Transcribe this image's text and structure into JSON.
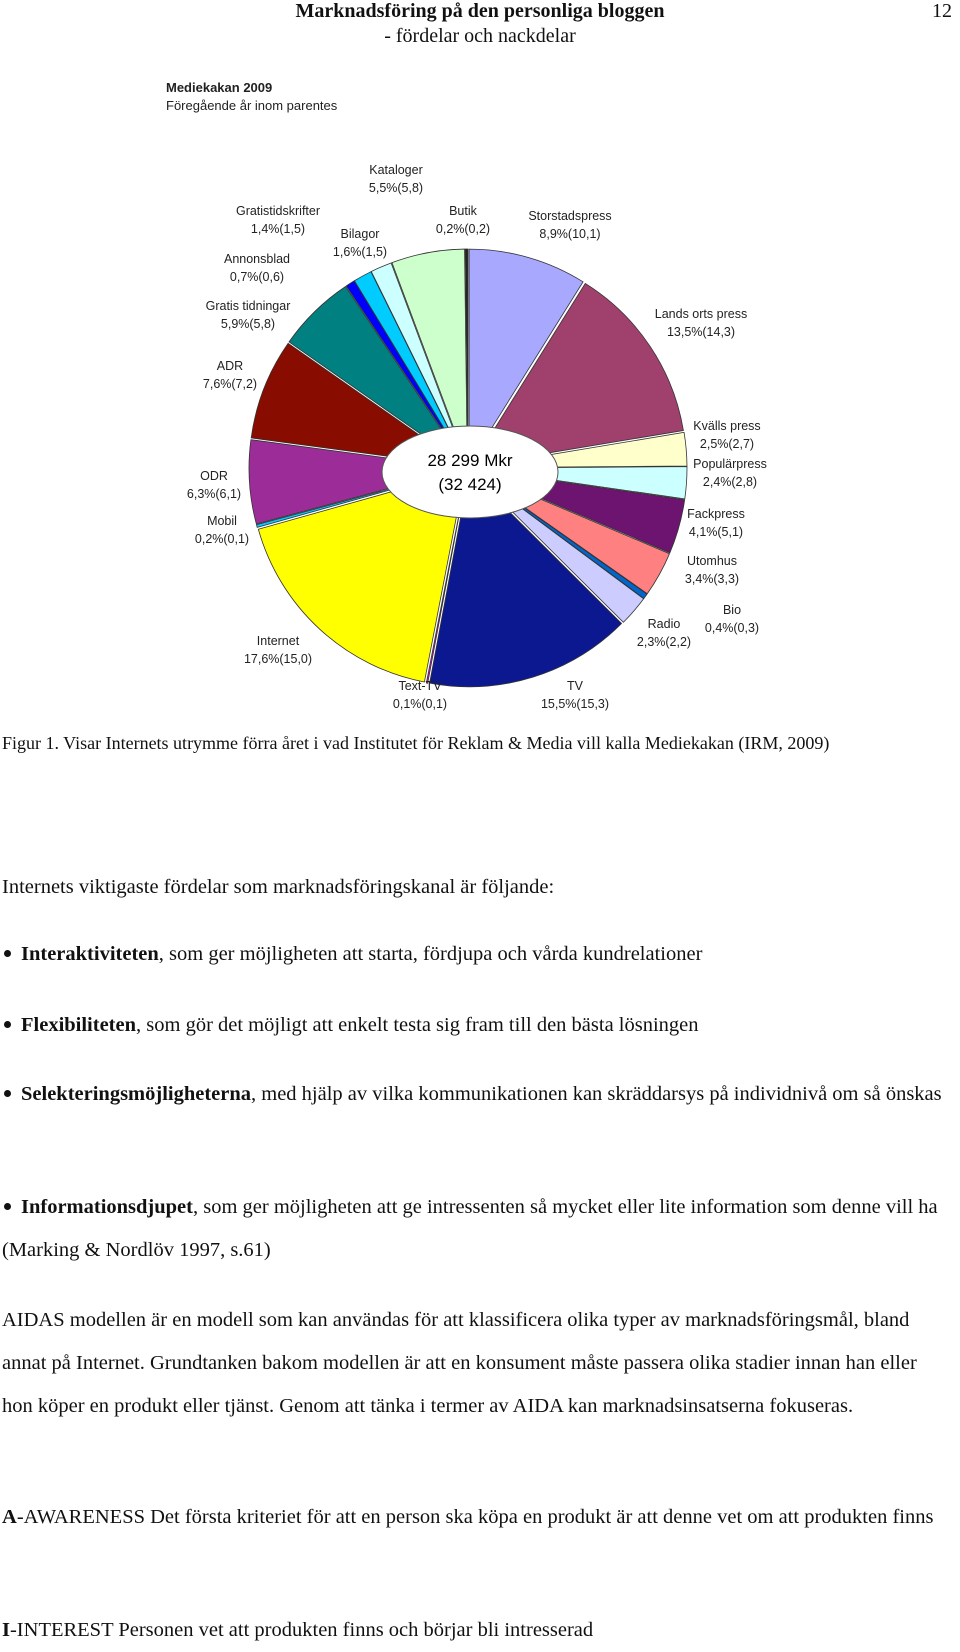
{
  "header": {
    "title": "Marknadsföring på den personliga bloggen",
    "subtitle": "- fördelar och nackdelar",
    "page_number": 12
  },
  "chart_data": {
    "type": "pie",
    "title": "Mediekakan 2009",
    "subtitle": "Föregående år inom parentes",
    "center_text": [
      "28 299 Mkr",
      "(32 424)"
    ],
    "categories": [
      "Storstadspress",
      "Lands orts press",
      "Kvälls press",
      "Populärpress",
      "Fackpress",
      "Utomhus",
      "Bio",
      "Radio",
      "TV",
      "Text-TV",
      "Internet",
      "Mobil",
      "ODR",
      "ADR",
      "Gratis tidningar",
      "Annonsblad",
      "Gratistidskrifter",
      "Bilagor",
      "Kataloger",
      "Butik"
    ],
    "values": [
      8.9,
      13.5,
      2.5,
      2.4,
      4.1,
      3.4,
      0.4,
      2.3,
      15.5,
      0.1,
      17.6,
      0.2,
      6.3,
      7.6,
      5.9,
      0.7,
      1.4,
      1.6,
      5.5,
      0.2
    ],
    "value_labels": [
      "8,9%(10,1)",
      "13,5%(14,3)",
      "2,5%(2,7)",
      "2,4%(2,8)",
      "4,1%(5,1)",
      "3,4%(3,3)",
      "0,4%(0,3)",
      "2,3%(2,2)",
      "15,5%(15,3)",
      "0,1%(0,1)",
      "17,6%(15,0)",
      "0,2%(0,1)",
      "6,3%(6,1)",
      "7,6%(7,2)",
      "5,9%(5,8)",
      "0,7%(0,6)",
      "1,4%(1,5)",
      "1,6%(1,5)",
      "5,5%(5,8)",
      "0,2%(0,2)"
    ],
    "colors": [
      "#a8a8ff",
      "#a0406c",
      "#ffffcc",
      "#ccffff",
      "#6c1470",
      "#ff8080",
      "#0066cc",
      "#ccccff",
      "#0c1890",
      "#ff00ff",
      "#ffff00",
      "#00ccff",
      "#9c2c98",
      "#880c00",
      "#008080",
      "#0000ff",
      "#00ccff",
      "#ccffff",
      "#ccffcc",
      "#222222"
    ]
  },
  "caption": "Figur 1. Visar Internets utrymme förra året i vad Institutet för Reklam & Media vill kalla Mediekakan (IRM, 2009)",
  "intro": "Internets viktigaste fördelar som marknadsföringskanal är följande:",
  "bullets": [
    {
      "lead": "Interaktiviteten",
      "text": ", som ger möjligheten att starta, fördjupa och vårda kundrelationer"
    },
    {
      "lead": "Flexibiliteten",
      "text": ", som gör det möjligt att enkelt testa sig fram till den bästa lösningen"
    },
    {
      "lead": "Selekteringsmöjligheterna",
      "text": ", med hjälp av vilka kommunikationen kan skräddarsys på individnivå om så önskas"
    },
    {
      "lead": "Informationsdjupet",
      "text": ", som ger möjligheten att ge intressenten så mycket eller lite information som denne vill ha (Marking & Nordlöv 1997, s.61)"
    }
  ],
  "paragraph": "AIDAS modellen är en modell som kan användas för att klassificera olika typer av marknadsföringsmål, bland annat på Internet. Grundtanken bakom modellen är att en konsument måste passera olika stadier innan han eller hon köper en produkt eller tjänst. Genom att tänka i termer av AIDA kan marknadsinsatserna fokuseras.",
  "stages": [
    {
      "lead": "A",
      "text": "-AWARENESS Det första kriteriet för att en person ska köpa en produkt är att denne vet om att produkten finns"
    },
    {
      "lead": "I",
      "text": "-INTEREST Personen vet att produkten finns och börjar bli intresserad"
    }
  ]
}
